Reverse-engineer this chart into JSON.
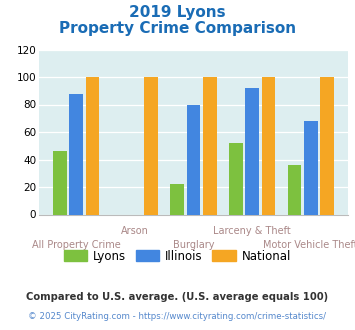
{
  "title_line1": "2019 Lyons",
  "title_line2": "Property Crime Comparison",
  "categories": [
    "All Property Crime",
    "Arson",
    "Burglary",
    "Larceny & Theft",
    "Motor Vehicle Theft"
  ],
  "lyons": [
    46,
    0,
    22,
    52,
    36
  ],
  "illinois": [
    88,
    0,
    80,
    92,
    68
  ],
  "national": [
    100,
    100,
    100,
    100,
    100
  ],
  "lyons_color": "#7dc13f",
  "illinois_color": "#4286e0",
  "national_color": "#f5a623",
  "ylim": [
    0,
    120
  ],
  "yticks": [
    0,
    20,
    40,
    60,
    80,
    100,
    120
  ],
  "xlabel_top": [
    "",
    "Arson",
    "",
    "Larceny & Theft",
    ""
  ],
  "xlabel_bot": [
    "All Property Crime",
    "",
    "Burglary",
    "",
    "Motor Vehicle Theft"
  ],
  "footnote1": "Compared to U.S. average. (U.S. average equals 100)",
  "footnote2": "© 2025 CityRating.com - https://www.cityrating.com/crime-statistics/",
  "bg_color": "#ddeef0",
  "title_color": "#1a6cb5",
  "xlabel_color": "#aa8888",
  "footnote1_color": "#333333",
  "footnote2_color": "#5588cc",
  "legend_labels": [
    "Lyons",
    "Illinois",
    "National"
  ]
}
